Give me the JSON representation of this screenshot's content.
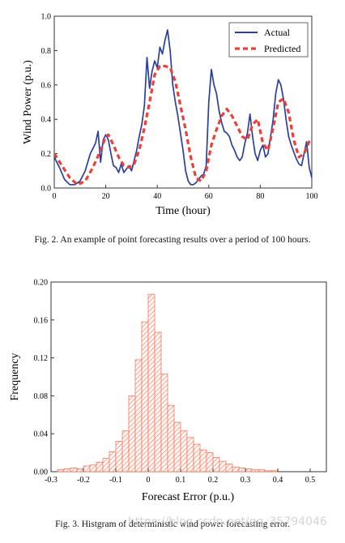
{
  "fig2": {
    "caption": "Fig. 2.  An example of point forecasting results over a period of 100 hours."
  },
  "fig3": {
    "caption": "Fig. 3.  Histgram of deterministic wind power forecasting error.",
    "watermark": "https://blog.csdn.net/qq_35794046"
  },
  "chart_data": [
    {
      "type": "line",
      "xlabel": "Time (hour)",
      "ylabel": "Wind Power (p.u.)",
      "xlim": [
        0,
        100
      ],
      "ylim": [
        0,
        1.0
      ],
      "xticks": [
        0,
        20,
        40,
        60,
        80,
        100
      ],
      "yticks": [
        0.0,
        0.2,
        0.4,
        0.6,
        0.8,
        1.0
      ],
      "ytick_labels": [
        "0.0",
        "0.2",
        "0.4",
        "0.6",
        "0.8",
        "1.0"
      ],
      "legend_position": "top-right",
      "series": [
        {
          "name": "Actual",
          "color": "#2a3f9e",
          "style": "solid",
          "x": [
            0,
            2,
            4,
            6,
            8,
            10,
            12,
            14,
            16,
            17,
            18,
            19,
            20,
            21,
            22,
            23,
            24,
            25,
            26,
            27,
            28,
            29,
            30,
            31,
            32,
            33,
            34,
            35,
            36,
            37,
            38,
            39,
            40,
            41,
            42,
            43,
            44,
            45,
            46,
            47,
            48,
            49,
            50,
            51,
            52,
            53,
            54,
            55,
            56,
            57,
            58,
            59,
            60,
            61,
            62,
            63,
            64,
            65,
            66,
            67,
            68,
            69,
            70,
            71,
            72,
            73,
            74,
            75,
            76,
            77,
            78,
            79,
            80,
            81,
            82,
            83,
            84,
            85,
            86,
            87,
            88,
            89,
            90,
            91,
            92,
            93,
            94,
            95,
            96,
            97,
            98,
            99,
            100
          ],
          "y": [
            0.18,
            0.12,
            0.05,
            0.02,
            0.02,
            0.04,
            0.1,
            0.2,
            0.26,
            0.33,
            0.15,
            0.28,
            0.31,
            0.28,
            0.2,
            0.13,
            0.12,
            0.09,
            0.14,
            0.09,
            0.11,
            0.13,
            0.1,
            0.16,
            0.22,
            0.3,
            0.37,
            0.48,
            0.76,
            0.58,
            0.68,
            0.74,
            0.7,
            0.82,
            0.78,
            0.86,
            0.92,
            0.8,
            0.6,
            0.5,
            0.42,
            0.32,
            0.22,
            0.1,
            0.04,
            0.02,
            0.02,
            0.03,
            0.05,
            0.07,
            0.08,
            0.13,
            0.5,
            0.69,
            0.6,
            0.55,
            0.45,
            0.38,
            0.33,
            0.32,
            0.3,
            0.25,
            0.22,
            0.18,
            0.16,
            0.18,
            0.26,
            0.32,
            0.43,
            0.3,
            0.2,
            0.16,
            0.22,
            0.25,
            0.18,
            0.2,
            0.3,
            0.4,
            0.55,
            0.63,
            0.6,
            0.52,
            0.4,
            0.3,
            0.25,
            0.21,
            0.17,
            0.14,
            0.13,
            0.2,
            0.27,
            0.12,
            0.06
          ]
        },
        {
          "name": "Predicted",
          "color": "#e8413a",
          "style": "dashed",
          "x": [
            0,
            3,
            6,
            9,
            12,
            15,
            18,
            20,
            21,
            23,
            25,
            27,
            29,
            31,
            33,
            35,
            37,
            39,
            41,
            43,
            45,
            47,
            49,
            51,
            53,
            55,
            57,
            59,
            61,
            63,
            65,
            67,
            69,
            71,
            73,
            75,
            77,
            79,
            81,
            83,
            85,
            87,
            89,
            91,
            93,
            95,
            97,
            99,
            100
          ],
          "y": [
            0.2,
            0.13,
            0.06,
            0.02,
            0.04,
            0.12,
            0.22,
            0.3,
            0.31,
            0.25,
            0.18,
            0.13,
            0.12,
            0.14,
            0.22,
            0.35,
            0.5,
            0.66,
            0.71,
            0.71,
            0.7,
            0.62,
            0.48,
            0.34,
            0.18,
            0.06,
            0.04,
            0.1,
            0.25,
            0.34,
            0.42,
            0.46,
            0.42,
            0.36,
            0.3,
            0.28,
            0.37,
            0.4,
            0.26,
            0.22,
            0.35,
            0.5,
            0.52,
            0.44,
            0.28,
            0.18,
            0.2,
            0.27,
            0.28
          ]
        }
      ]
    },
    {
      "type": "bar",
      "xlabel": "Forecast Error (p.u.)",
      "ylabel": "Frequency",
      "xlim": [
        -0.3,
        0.55
      ],
      "ylim": [
        0,
        0.2
      ],
      "xticks": [
        -0.3,
        -0.2,
        -0.1,
        0,
        0.1,
        0.2,
        0.3,
        0.4,
        0.5
      ],
      "xtick_labels": [
        "-0.3",
        "-0.2",
        "-0.1",
        "0",
        "0.1",
        "0.2",
        "0.3",
        "0.4",
        "0.5"
      ],
      "yticks": [
        0,
        0.04,
        0.08,
        0.12,
        0.16,
        0.2
      ],
      "ytick_labels": [
        "0.00",
        "0.04",
        "0.08",
        "0.12",
        "0.16",
        "0.20"
      ],
      "bin_width": 0.02,
      "bar_color": "#f07860",
      "bin_starts": [
        -0.28,
        -0.26,
        -0.24,
        -0.22,
        -0.2,
        -0.18,
        -0.16,
        -0.14,
        -0.12,
        -0.1,
        -0.08,
        -0.06,
        -0.04,
        -0.02,
        0.0,
        0.02,
        0.04,
        0.06,
        0.08,
        0.1,
        0.12,
        0.14,
        0.16,
        0.18,
        0.2,
        0.22,
        0.24,
        0.26,
        0.28,
        0.3,
        0.32,
        0.34,
        0.36,
        0.38
      ],
      "values": [
        0.002,
        0.003,
        0.004,
        0.003,
        0.006,
        0.007,
        0.01,
        0.014,
        0.021,
        0.032,
        0.043,
        0.08,
        0.118,
        0.158,
        0.187,
        0.147,
        0.103,
        0.07,
        0.052,
        0.043,
        0.036,
        0.029,
        0.023,
        0.02,
        0.015,
        0.011,
        0.008,
        0.005,
        0.004,
        0.003,
        0.002,
        0.002,
        0.001,
        0.001
      ]
    }
  ]
}
